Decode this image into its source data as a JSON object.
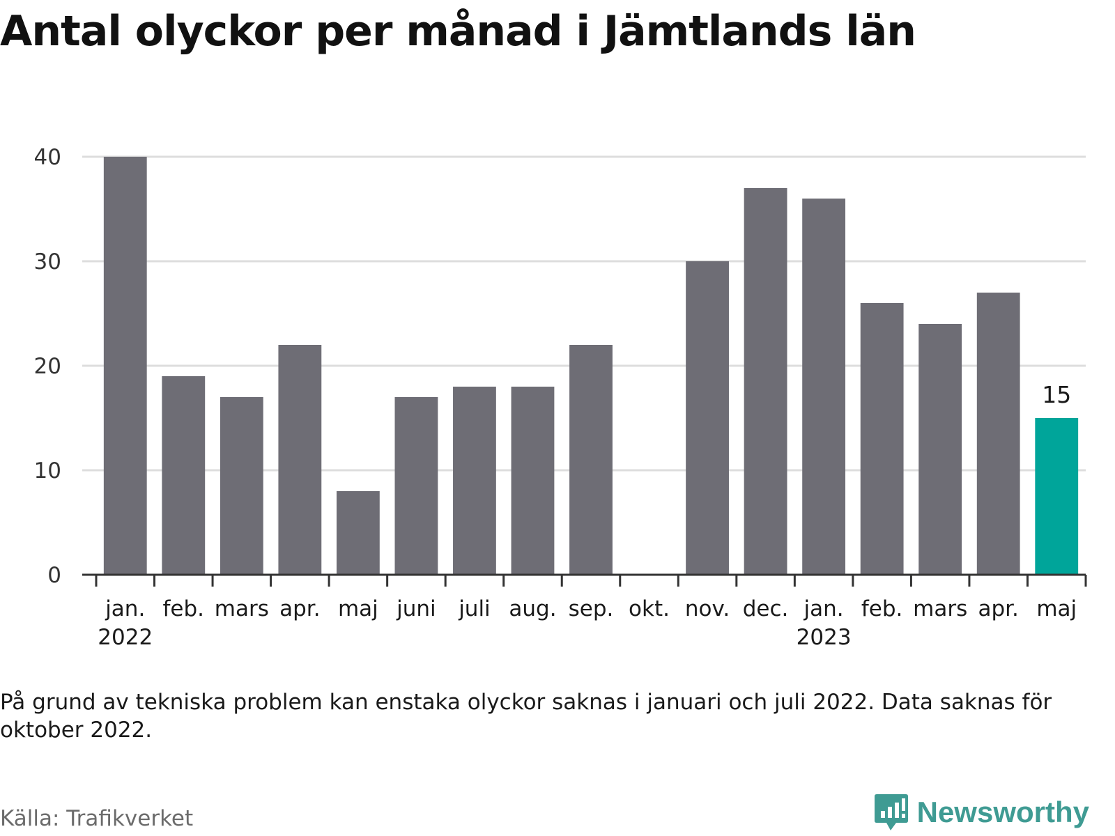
{
  "title": "Antal olyckor per månad i Jämtlands län",
  "note": "På grund av tekniska problem kan enstaka olyckor saknas i januari och juli 2022. Data saknas för oktober 2022.",
  "source": "Källa: Trafikverket",
  "brand": "Newsworthy",
  "colors": {
    "bar": "#6e6d75",
    "highlight": "#00a59a",
    "grid": "#dddddd",
    "axis": "#333333",
    "brand": "#3f9b93"
  },
  "chart_data": {
    "type": "bar",
    "categories": [
      "jan.",
      "feb.",
      "mars",
      "apr.",
      "maj",
      "juni",
      "juli",
      "aug.",
      "sep.",
      "okt.",
      "nov.",
      "dec.",
      "jan.",
      "feb.",
      "mars",
      "apr.",
      "maj"
    ],
    "year_labels": [
      "2022",
      "2023"
    ],
    "year_label_categories": [
      0,
      12
    ],
    "values": [
      40,
      19,
      17,
      22,
      8,
      17,
      18,
      18,
      22,
      null,
      30,
      37,
      36,
      26,
      24,
      27,
      15
    ],
    "highlight_index": 16,
    "data_labels": [
      {
        "index": 16,
        "text": "15"
      }
    ],
    "yticks": [
      "0",
      "10",
      "20",
      "30",
      "40"
    ],
    "ylim": [
      0,
      40
    ],
    "grid": true,
    "legend": "none"
  }
}
